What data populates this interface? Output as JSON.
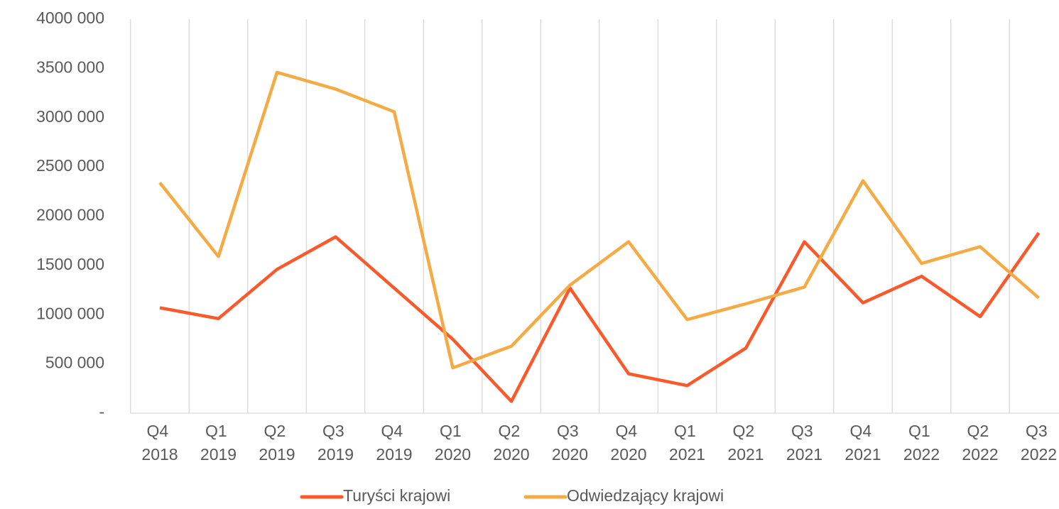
{
  "chart_data": {
    "type": "line",
    "categories": [
      "Q4 2018",
      "Q1 2019",
      "Q2 2019",
      "Q3 2019",
      "Q4 2019",
      "Q1 2020",
      "Q2 2020",
      "Q3 2020",
      "Q4 2020",
      "Q1 2021",
      "Q2 2021",
      "Q3 2021",
      "Q4 2021",
      "Q1 2022",
      "Q2 2022",
      "Q3 2022"
    ],
    "series": [
      {
        "name": "Turyści krajowi",
        "color": "#f9592b",
        "values": [
          1070000,
          960000,
          1460000,
          1790000,
          1270000,
          750000,
          120000,
          1270000,
          400000,
          280000,
          660000,
          1740000,
          1120000,
          1390000,
          980000,
          1830000
        ]
      },
      {
        "name": "Odwiedzający krajowi",
        "color": "#f5ab45",
        "values": [
          2340000,
          1590000,
          3460000,
          3290000,
          3060000,
          460000,
          680000,
          1300000,
          1740000,
          950000,
          1110000,
          1280000,
          2360000,
          1520000,
          1690000,
          1170000
        ]
      }
    ],
    "ylim": [
      0,
      4000000
    ],
    "yticks": [
      {
        "value": 0,
        "label": "-"
      },
      {
        "value": 500000,
        "label": "500 000"
      },
      {
        "value": 1000000,
        "label": "1000 000"
      },
      {
        "value": 1500000,
        "label": "1500 000"
      },
      {
        "value": 2000000,
        "label": "2000 000"
      },
      {
        "value": 2500000,
        "label": "2500 000"
      },
      {
        "value": 3000000,
        "label": "3000 000"
      },
      {
        "value": 3500000,
        "label": "3500 000"
      },
      {
        "value": 4000000,
        "label": "4000 000"
      }
    ],
    "legend": "bottom"
  }
}
